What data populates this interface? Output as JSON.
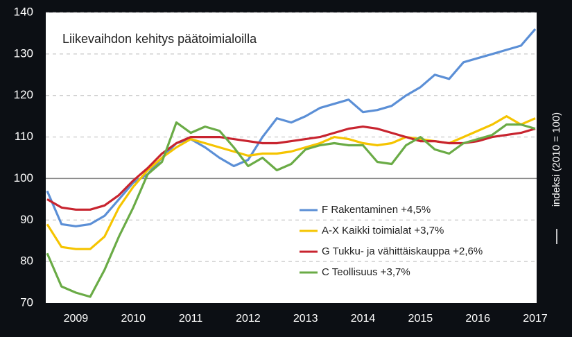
{
  "chart_data": {
    "type": "line",
    "title": "Liikevaihdon kehitys päätoimialoilla",
    "y_label": "indeksi (2010 = 100)",
    "categories": [
      null,
      null,
      "2009",
      null,
      null,
      null,
      "2010",
      null,
      null,
      null,
      "2011",
      null,
      null,
      null,
      "2012",
      null,
      null,
      null,
      "2013",
      null,
      null,
      null,
      "2014",
      null,
      null,
      null,
      "2015",
      null,
      null,
      null,
      "2016",
      null,
      null,
      null,
      "2017"
    ],
    "series": [
      {
        "name": "F Rakentaminen +4,5%",
        "color": "#5b8fd6",
        "values": [
          97,
          89,
          88.5,
          89,
          91,
          95,
          99,
          101,
          105,
          108.5,
          109.5,
          107.5,
          105,
          103,
          104.5,
          110,
          114.5,
          113.5,
          115,
          117,
          118,
          119,
          116,
          116.5,
          117.5,
          120,
          122,
          125,
          124,
          128,
          129,
          130,
          131,
          132,
          136
        ]
      },
      {
        "name": "A-X Kaikki toimialat +3,7%",
        "color": "#f5c400",
        "values": [
          89,
          83.5,
          83,
          83,
          86,
          93,
          98,
          102,
          105,
          107.5,
          109.5,
          108.5,
          107.5,
          106.5,
          105.5,
          106,
          106,
          106.5,
          107.5,
          108.5,
          110,
          109.5,
          108.5,
          108,
          108.5,
          110,
          109.5,
          109,
          108.5,
          110,
          111.5,
          113,
          115,
          113,
          114.5
        ]
      },
      {
        "name": "G Tukku- ja vähittäiskauppa +2,6%",
        "color": "#c8242f",
        "values": [
          95,
          93,
          92.5,
          92.5,
          93.5,
          96,
          99.5,
          102.5,
          106,
          108.5,
          110,
          110,
          110,
          109.5,
          109,
          108.5,
          108.5,
          109,
          109.5,
          110,
          111,
          112,
          112.5,
          112,
          111,
          110,
          109,
          109,
          108.5,
          108.5,
          109,
          110,
          110.5,
          111,
          112
        ]
      },
      {
        "name": "C Teollisuus +3,7%",
        "color": "#6aab46",
        "values": [
          82,
          74,
          72.5,
          71.5,
          78,
          86,
          93,
          101,
          104,
          113.5,
          111,
          112.5,
          111.5,
          107.5,
          103,
          105,
          102,
          103.5,
          107,
          108,
          108.5,
          108,
          108,
          104,
          103.5,
          108,
          110,
          107,
          106,
          108.5,
          109.5,
          110.5,
          113,
          113,
          112
        ]
      }
    ],
    "ylim": [
      70,
      140
    ],
    "yticks": [
      70,
      80,
      90,
      100,
      110,
      120,
      130,
      140
    ],
    "reference_line": 100,
    "grid": true,
    "legend": "lower right"
  }
}
